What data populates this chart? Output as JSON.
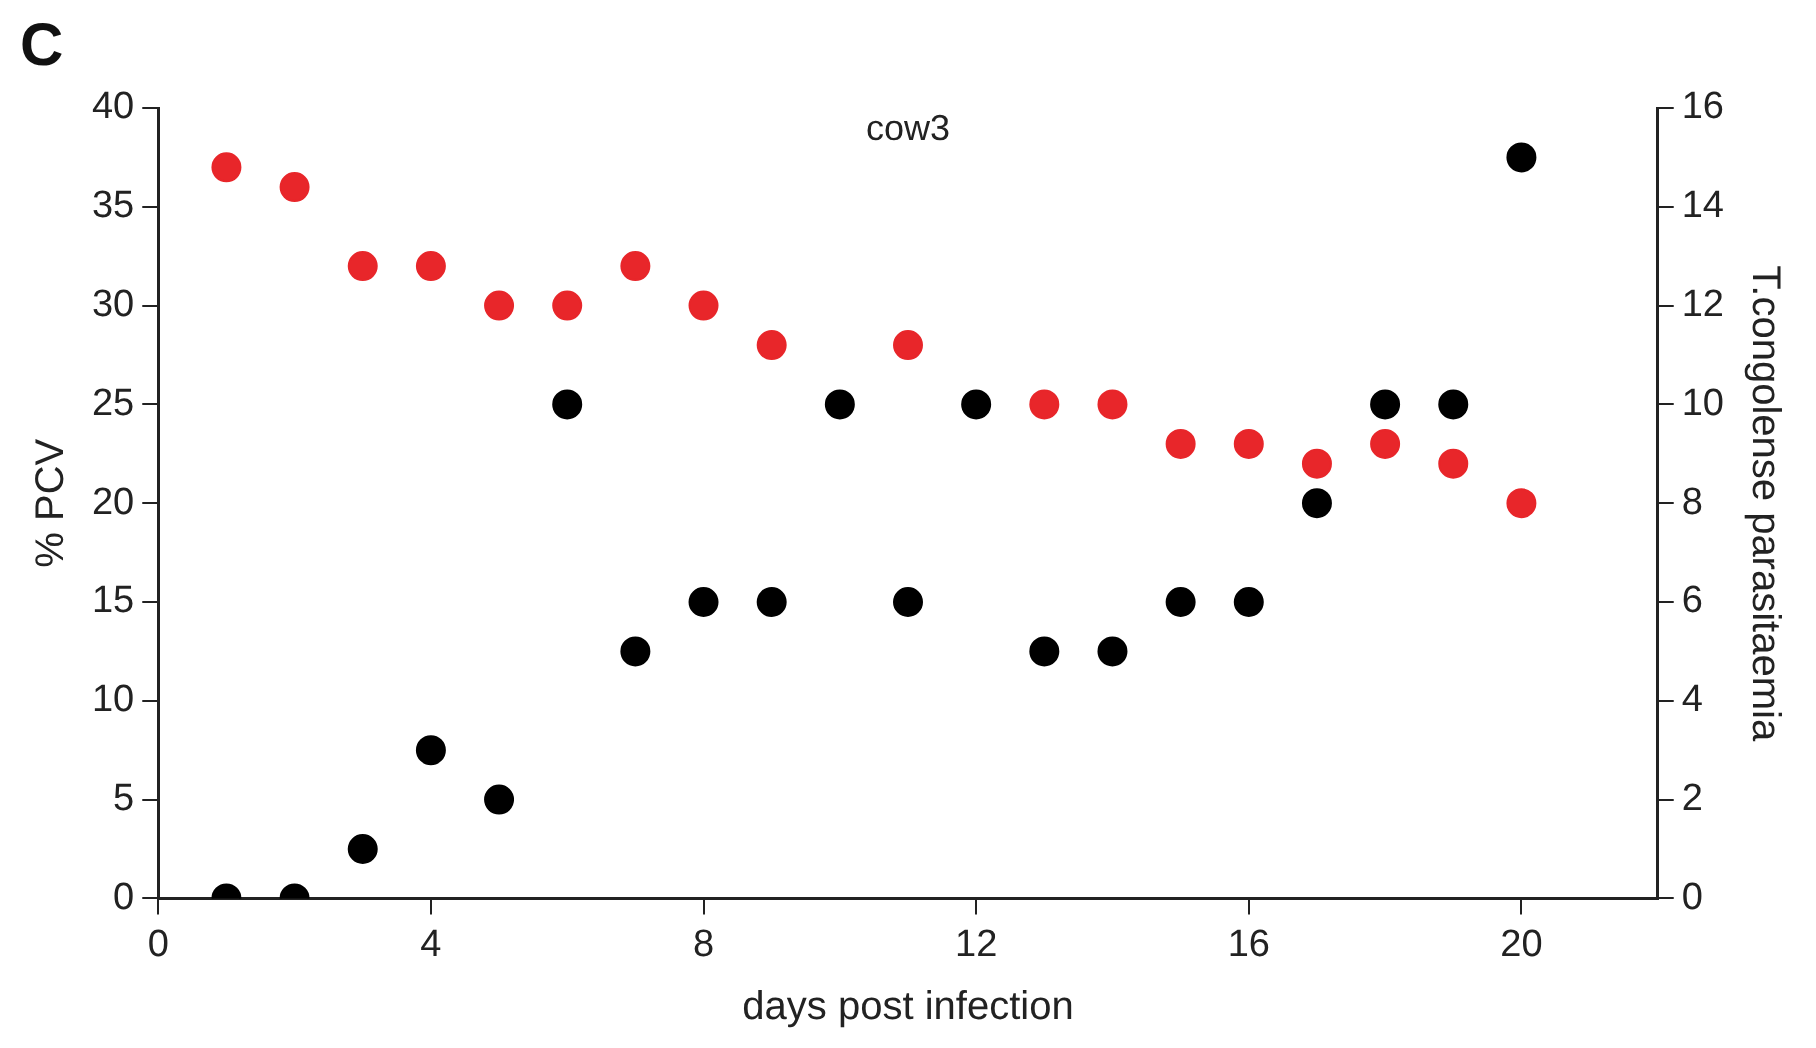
{
  "chart_data": {
    "type": "scatter",
    "title": "C",
    "annotations": [
      "cow3"
    ],
    "xlabel": "days post infection",
    "ylabel": "% PCV",
    "y2label": "T.congolense parasitaemia",
    "xlim": [
      0,
      22
    ],
    "xticks": [
      0,
      4,
      8,
      12,
      16,
      20
    ],
    "ylim": [
      0,
      40
    ],
    "yticks": [
      0,
      5,
      10,
      15,
      20,
      25,
      30,
      35,
      40
    ],
    "y2lim": [
      0,
      16
    ],
    "y2ticks": [
      0,
      2,
      4,
      6,
      8,
      10,
      12,
      14,
      16
    ],
    "grid": false,
    "legend": false,
    "marker": "circle",
    "series": [
      {
        "color": "#e8262a",
        "x": [
          1,
          2,
          3,
          4,
          5,
          6,
          7,
          8,
          9,
          11,
          13,
          14,
          15,
          16,
          17,
          18,
          19,
          20
        ],
        "values": [
          37,
          36,
          32,
          32,
          30,
          30,
          32,
          30,
          28,
          28,
          25,
          25,
          23,
          23,
          22,
          23,
          22,
          20
        ]
      },
      {
        "color": "#000000",
        "axis": "y2",
        "x": [
          1,
          2,
          3,
          4,
          5,
          6,
          7,
          8,
          9,
          10,
          11,
          12,
          13,
          14,
          15,
          16,
          17,
          18,
          19,
          20
        ],
        "values": [
          0,
          0,
          1,
          3,
          2,
          10,
          5,
          6,
          6,
          10,
          6,
          10,
          5,
          5,
          6,
          6,
          8,
          10,
          10,
          15
        ]
      }
    ]
  }
}
